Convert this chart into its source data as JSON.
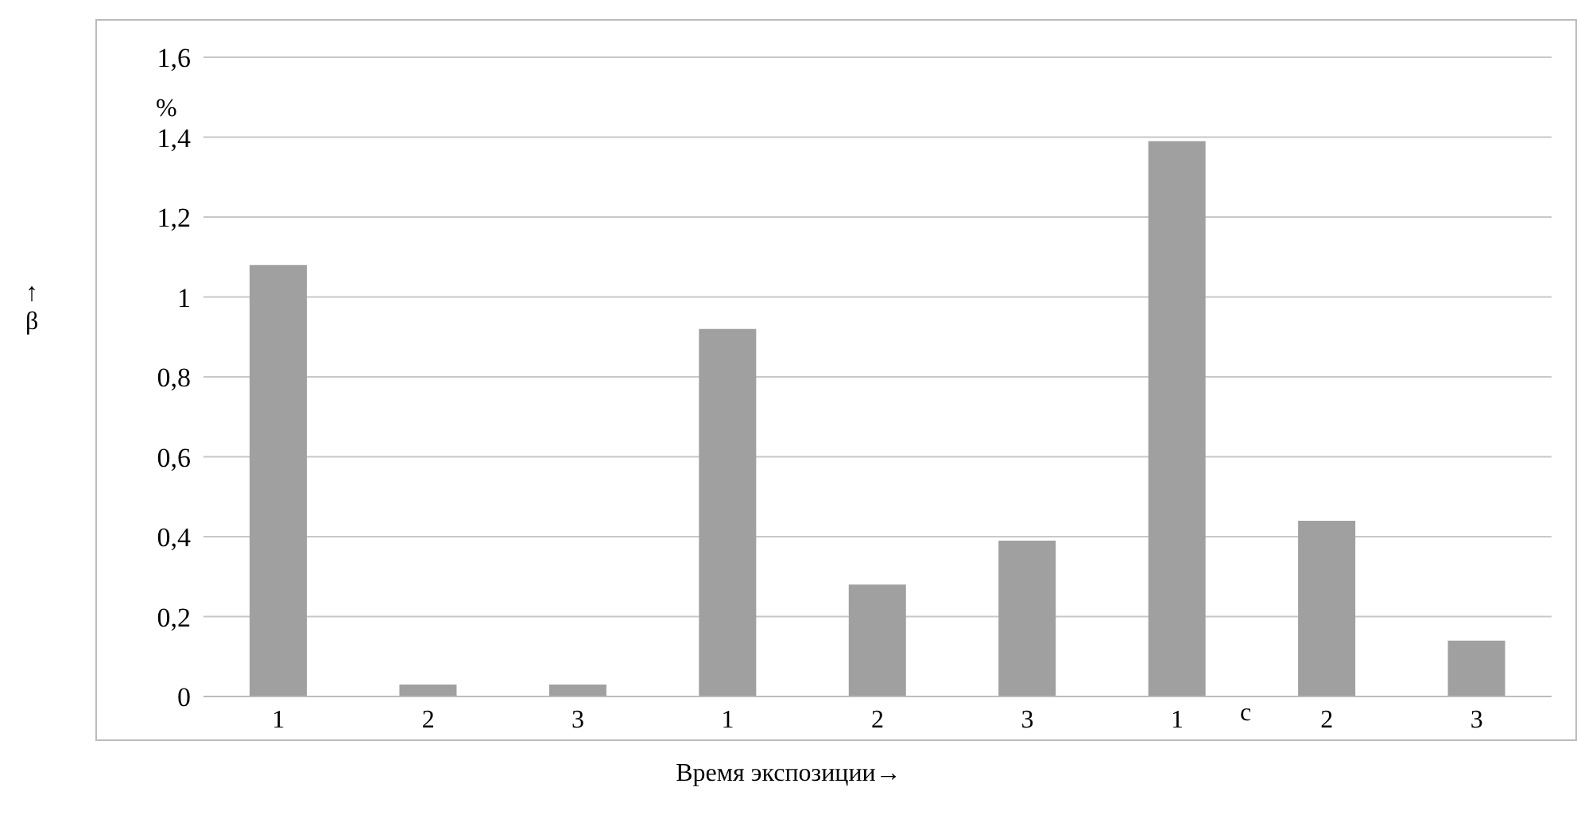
{
  "chart_data": {
    "type": "bar",
    "ylabel": "↑β",
    "xlabel": "Время экспозиции→",
    "annotations": [
      "%",
      "c"
    ],
    "categories": [
      "1",
      "2",
      "3",
      "1",
      "2",
      "3",
      "1",
      "2",
      "3"
    ],
    "values": [
      1.08,
      0.03,
      0.03,
      0.92,
      0.28,
      0.39,
      1.39,
      0.44,
      0.14
    ],
    "color": "#a0a0a0",
    "ylim": [
      0,
      1.6
    ],
    "yticks": [
      0,
      {
        "value": 0.2,
        "label": "0,2"
      },
      {
        "value": 0.4,
        "label": "0,4"
      },
      {
        "value": 0.6,
        "label": "0,6"
      },
      {
        "value": 0.8,
        "label": "0,8"
      },
      1,
      {
        "value": 1.2,
        "label": "1,2"
      },
      {
        "value": 1.4,
        "label": "1,4"
      },
      {
        "value": 1.6,
        "label": "1,6"
      }
    ],
    "grid": "y",
    "legend": false
  }
}
